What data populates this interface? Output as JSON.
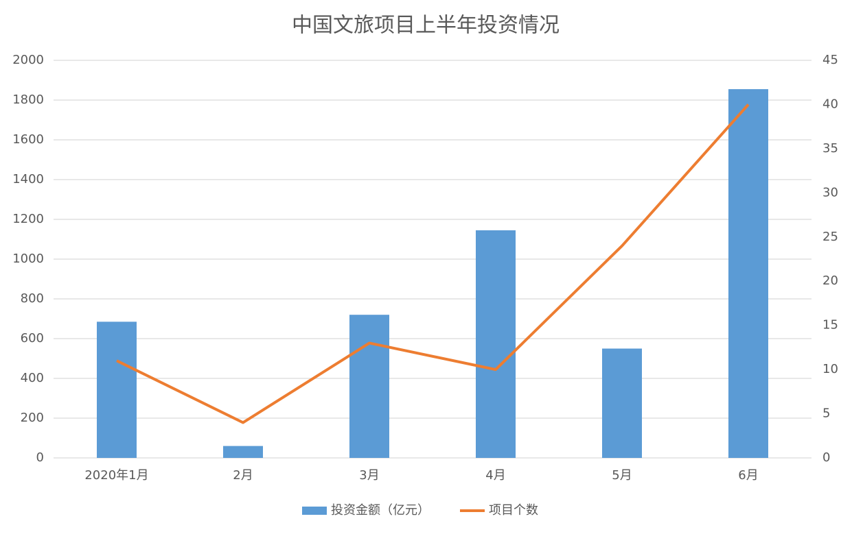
{
  "chart_data": {
    "type": "bar",
    "title": "中国文旅项目上半年投资情况",
    "categories": [
      "2020年1月",
      "2月",
      "3月",
      "4月",
      "5月",
      "6月"
    ],
    "series": [
      {
        "name": "投资金额（亿元）",
        "type": "bar",
        "color": "#5b9bd5",
        "values": [
          685,
          60,
          720,
          1145,
          550,
          1855
        ]
      },
      {
        "name": "项目个数",
        "type": "line",
        "axis": "y2",
        "color": "#ed7d31",
        "values": [
          11,
          4,
          13,
          10,
          24,
          40
        ]
      }
    ],
    "ylim": [
      0,
      2000
    ],
    "yticks": [
      0,
      200,
      400,
      600,
      800,
      1000,
      1200,
      1400,
      1600,
      1800,
      2000
    ],
    "y2lim": [
      0,
      45
    ],
    "y2ticks": [
      0,
      5,
      10,
      15,
      20,
      25,
      30,
      35,
      40,
      45
    ],
    "grid": true,
    "legend": "bottom"
  }
}
